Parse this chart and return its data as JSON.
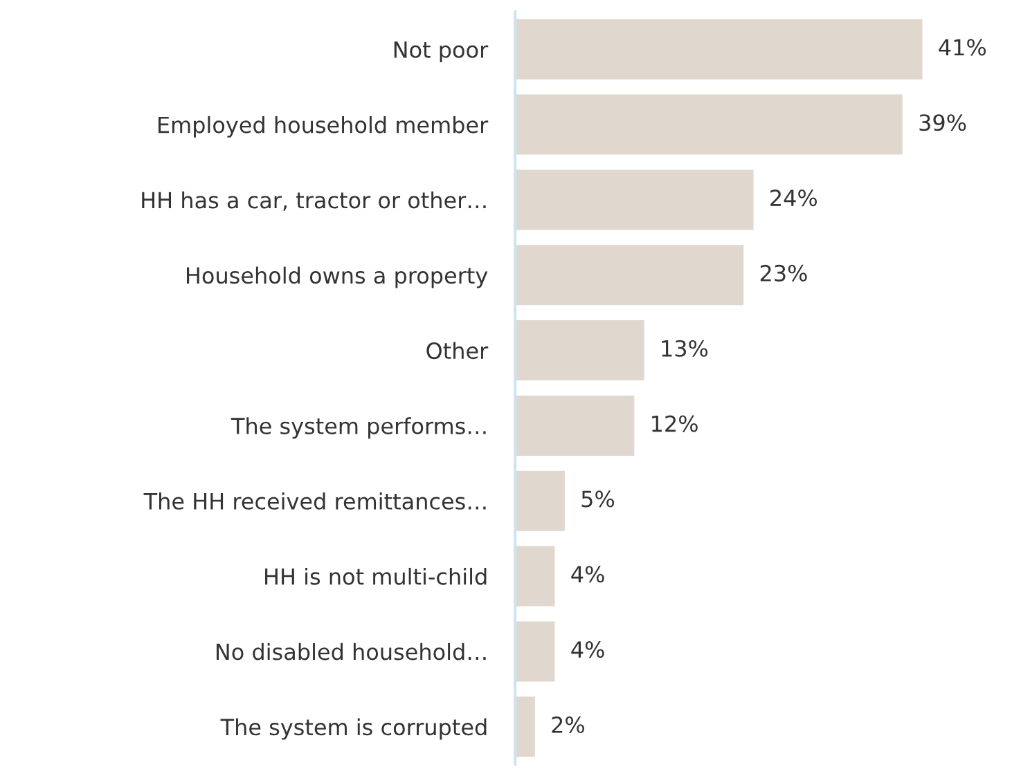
{
  "chart_data": {
    "type": "bar",
    "orientation": "horizontal",
    "categories": [
      "Not poor",
      "Employed household member",
      "HH has a car, tractor or other…",
      "Household owns a property",
      "Other",
      "The system performs…",
      "The HH received remittances…",
      "HH is not multi-child",
      "No disabled household…",
      "The system is corrupted"
    ],
    "values": [
      41,
      39,
      24,
      23,
      13,
      12,
      5,
      4,
      4,
      2
    ],
    "value_labels": [
      "41%",
      "39%",
      "24%",
      "23%",
      "13%",
      "12%",
      "5%",
      "4%",
      "4%",
      "2%"
    ],
    "color": "#e0d7ce",
    "tick_labels": "y",
    "grid": false
  }
}
